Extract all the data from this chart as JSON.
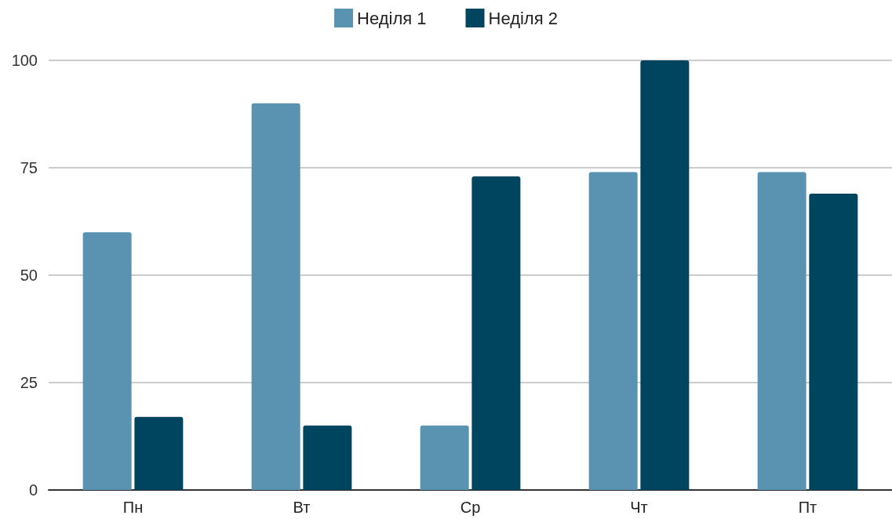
{
  "chart_data": {
    "type": "bar",
    "categories": [
      "Пн",
      "Вт",
      "Ср",
      "Чт",
      "Пт"
    ],
    "series": [
      {
        "name": "Неділя 1",
        "color": "#5a93b1",
        "values": [
          60,
          90,
          15,
          74,
          74
        ]
      },
      {
        "name": "Неділя 2",
        "color": "#00455f",
        "values": [
          17,
          15,
          73,
          100,
          69
        ]
      }
    ],
    "ylim": [
      0,
      100
    ],
    "yticks": [
      0,
      25,
      50,
      75,
      100
    ],
    "grid": "y",
    "legend": "top"
  }
}
